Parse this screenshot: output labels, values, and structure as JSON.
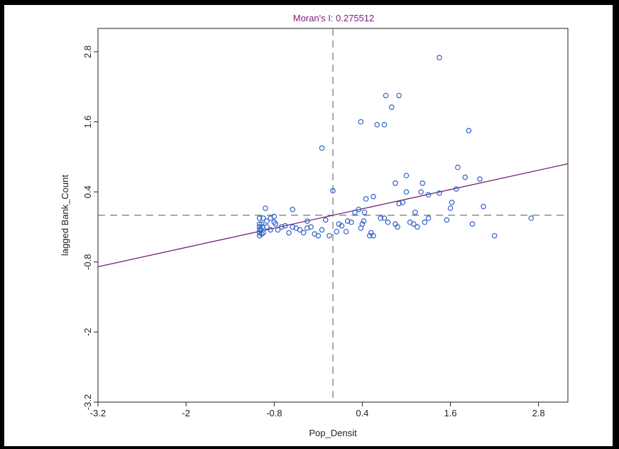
{
  "chart_data": {
    "type": "scatter",
    "title": "Moran's I: 0.275512",
    "xlabel": "Pop_Densit",
    "ylabel": "lagged Bank_Count",
    "xlim": [
      -3.2,
      3.2
    ],
    "ylim": [
      -3.2,
      3.2
    ],
    "xticks": [
      "-3.2",
      "-2",
      "-0.8",
      "0.4",
      "1.6",
      "2.8"
    ],
    "yticks": [
      "-3.2",
      "-2",
      "-0.8",
      "0.4",
      "1.6",
      "2.8"
    ],
    "x_ref": 0,
    "y_ref": 0,
    "slope": 0.275512,
    "colors": {
      "points": "#2f62c8",
      "line": "#7a1f7a",
      "title": "#7a1f7a",
      "ref": "#555555"
    },
    "points": [
      [
        -1.0,
        -0.05
      ],
      [
        -1.0,
        -0.15
      ],
      [
        -1.0,
        -0.2
      ],
      [
        -1.0,
        -0.25
      ],
      [
        -1.0,
        -0.3
      ],
      [
        -1.0,
        -0.35
      ],
      [
        -0.98,
        -0.25
      ],
      [
        -0.97,
        -0.32
      ],
      [
        -0.95,
        -0.3
      ],
      [
        -0.96,
        -0.2
      ],
      [
        -0.97,
        -0.15
      ],
      [
        -0.9,
        -0.1
      ],
      [
        -0.85,
        -0.05
      ],
      [
        -0.8,
        -0.02
      ],
      [
        -0.78,
        -0.15
      ],
      [
        -0.75,
        -0.25
      ],
      [
        -0.7,
        -0.2
      ],
      [
        -0.65,
        -0.18
      ],
      [
        -0.6,
        -0.3
      ],
      [
        -0.55,
        -0.2
      ],
      [
        -0.5,
        -0.22
      ],
      [
        -0.45,
        -0.25
      ],
      [
        -0.4,
        -0.3
      ],
      [
        -0.35,
        -0.22
      ],
      [
        -0.3,
        -0.2
      ],
      [
        -0.25,
        -0.32
      ],
      [
        -0.2,
        -0.35
      ],
      [
        -0.15,
        -0.25
      ],
      [
        -0.1,
        -0.08
      ],
      [
        -0.05,
        -0.35
      ],
      [
        0.05,
        -0.28
      ],
      [
        0.08,
        -0.15
      ],
      [
        0.12,
        -0.18
      ],
      [
        0.18,
        -0.28
      ],
      [
        0.2,
        -0.1
      ],
      [
        0.25,
        -0.12
      ],
      [
        -0.92,
        0.12
      ],
      [
        -0.95,
        -0.05
      ],
      [
        -0.85,
        -0.25
      ],
      [
        -0.8,
        -0.12
      ],
      [
        -0.9,
        -0.2
      ],
      [
        -0.55,
        0.1
      ],
      [
        -0.35,
        -0.1
      ],
      [
        -0.15,
        1.15
      ],
      [
        0.0,
        0.42
      ],
      [
        0.3,
        0.05
      ],
      [
        0.35,
        0.1
      ],
      [
        0.38,
        -0.22
      ],
      [
        0.4,
        -0.15
      ],
      [
        0.42,
        -0.1
      ],
      [
        0.43,
        0.05
      ],
      [
        0.45,
        0.28
      ],
      [
        0.5,
        -0.35
      ],
      [
        0.52,
        -0.3
      ],
      [
        0.55,
        -0.35
      ],
      [
        0.55,
        0.32
      ],
      [
        0.65,
        -0.05
      ],
      [
        0.7,
        -0.05
      ],
      [
        0.75,
        -0.12
      ],
      [
        0.85,
        -0.15
      ],
      [
        0.88,
        -0.2
      ],
      [
        0.9,
        0.2
      ],
      [
        0.95,
        0.22
      ],
      [
        1.0,
        0.4
      ],
      [
        1.05,
        -0.12
      ],
      [
        1.1,
        -0.15
      ],
      [
        1.12,
        0.05
      ],
      [
        1.15,
        -0.2
      ],
      [
        1.2,
        0.4
      ],
      [
        1.22,
        0.55
      ],
      [
        1.25,
        -0.12
      ],
      [
        1.3,
        -0.05
      ],
      [
        1.3,
        0.35
      ],
      [
        1.45,
        0.38
      ],
      [
        1.55,
        -0.08
      ],
      [
        1.6,
        0.12
      ],
      [
        1.62,
        0.22
      ],
      [
        1.68,
        0.45
      ],
      [
        1.7,
        0.82
      ],
      [
        1.8,
        0.65
      ],
      [
        1.85,
        1.45
      ],
      [
        1.9,
        -0.15
      ],
      [
        2.0,
        0.62
      ],
      [
        2.05,
        0.15
      ],
      [
        2.2,
        -0.35
      ],
      [
        2.7,
        -0.05
      ],
      [
        0.38,
        1.6
      ],
      [
        0.6,
        1.55
      ],
      [
        0.7,
        1.55
      ],
      [
        0.8,
        1.85
      ],
      [
        0.72,
        2.05
      ],
      [
        0.9,
        2.05
      ],
      [
        1.45,
        2.7
      ],
      [
        1.0,
        0.68
      ],
      [
        0.85,
        0.55
      ]
    ]
  }
}
